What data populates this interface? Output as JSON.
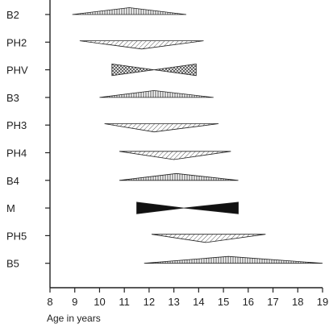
{
  "chart_data": {
    "type": "range-diagram",
    "xlabel": "Age in years",
    "xlim": [
      8,
      19
    ],
    "xticks": [
      8,
      9,
      10,
      11,
      12,
      13,
      14,
      15,
      16,
      17,
      18,
      19
    ],
    "fill_legend": {
      "vertical": "vertical hatching",
      "diagonal": "diagonal hatching",
      "cross": "cross-hatching",
      "solid": "solid black"
    },
    "rows": [
      {
        "label": "B2",
        "start": 8.9,
        "end": 13.5,
        "peak": 11.2,
        "shape": "diamond",
        "fill": "vertical"
      },
      {
        "label": "PH2",
        "start": 9.2,
        "end": 14.2,
        "peak": 11.7,
        "shape": "down",
        "fill": "diagonal"
      },
      {
        "label": "PHV",
        "start": 10.5,
        "end": 13.9,
        "peak": 12.2,
        "shape": "bowtie",
        "fill": "cross"
      },
      {
        "label": "B3",
        "start": 10.0,
        "end": 14.6,
        "peak": 12.2,
        "shape": "diamond",
        "fill": "vertical"
      },
      {
        "label": "PH3",
        "start": 10.2,
        "end": 14.8,
        "peak": 12.2,
        "shape": "down",
        "fill": "diagonal"
      },
      {
        "label": "PH4",
        "start": 10.8,
        "end": 15.3,
        "peak": 13.0,
        "shape": "down",
        "fill": "diagonal"
      },
      {
        "label": "B4",
        "start": 10.8,
        "end": 15.6,
        "peak": 13.1,
        "shape": "diamond",
        "fill": "vertical"
      },
      {
        "label": "M",
        "start": 11.5,
        "end": 15.6,
        "peak": 13.4,
        "shape": "bowtie",
        "fill": "solid"
      },
      {
        "label": "PH5",
        "start": 12.1,
        "end": 16.7,
        "peak": 14.3,
        "shape": "down",
        "fill": "diagonal"
      },
      {
        "label": "B5",
        "start": 11.8,
        "end": 19.0,
        "peak": 15.2,
        "shape": "diamond",
        "fill": "vertical"
      }
    ]
  }
}
